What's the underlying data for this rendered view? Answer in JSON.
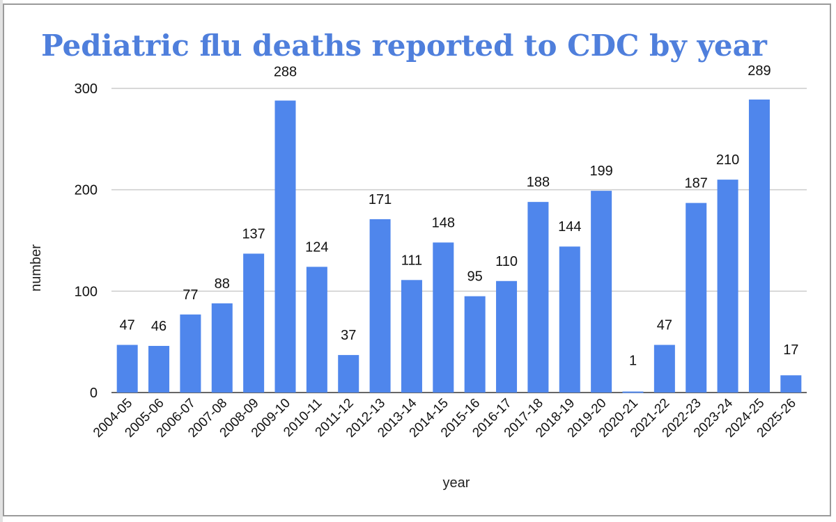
{
  "chart_data": {
    "type": "bar",
    "title": "Pediatric flu deaths reported to CDC by year",
    "xlabel": "year",
    "ylabel": "number",
    "ylim": [
      0,
      300
    ],
    "yticks": [
      0,
      100,
      200,
      300
    ],
    "grid": true,
    "legend": "none",
    "categories": [
      "2004-05",
      "2005-06",
      "2006-07",
      "2007-08",
      "2008-09",
      "2009-10",
      "2010-11",
      "2011-12",
      "2012-13",
      "2013-14",
      "2014-15",
      "2015-16",
      "2016-17",
      "2017-18",
      "2018-19",
      "2019-20",
      "2020-21",
      "2021-22",
      "2022-23",
      "2023-24",
      "2024-25",
      "2025-26"
    ],
    "values": [
      47,
      46,
      77,
      88,
      137,
      288,
      124,
      37,
      171,
      111,
      148,
      95,
      110,
      188,
      144,
      199,
      1,
      47,
      187,
      210,
      289,
      17
    ],
    "colors": {
      "bar": "#4f86ec",
      "title": "#4f7fdc"
    }
  }
}
